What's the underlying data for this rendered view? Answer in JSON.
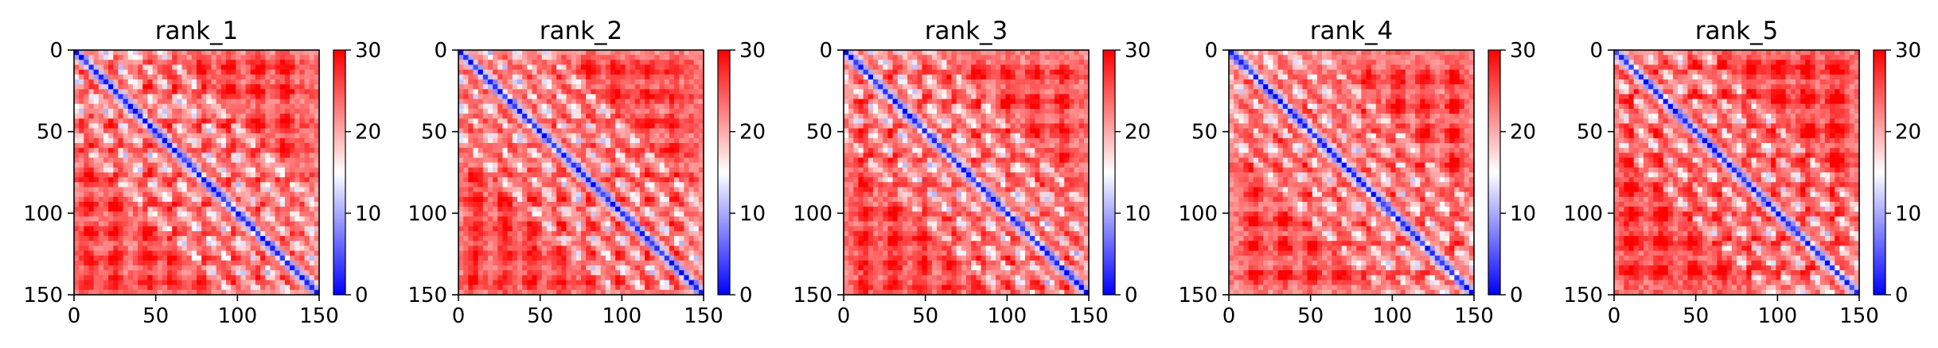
{
  "chart_data": [
    {
      "type": "heatmap",
      "title": "rank_1",
      "xlabel": "",
      "ylabel": "",
      "xlim": [
        0,
        150
      ],
      "ylim": [
        150,
        0
      ],
      "x_ticks": [
        "0",
        "50",
        "100",
        "150"
      ],
      "y_ticks": [
        "0",
        "50",
        "100",
        "150"
      ],
      "colorbar": {
        "range": [
          0,
          30
        ],
        "ticks": [
          "0",
          "10",
          "20",
          "30"
        ],
        "colormap": [
          "#0000ff",
          "#ffffff",
          "#ff0000"
        ]
      },
      "n_residues": 150,
      "diagonal_value": 2,
      "background_value": 24,
      "blue_offdiagonal_bands": [
        {
          "offset": 17,
          "value": 11
        },
        {
          "offset": 34,
          "value": 12
        },
        {
          "offset": 52,
          "value": 13
        }
      ],
      "red_block_rows": [
        12,
        25,
        45,
        60,
        78,
        95,
        112,
        127,
        142
      ],
      "red_block_cols": [
        8,
        25,
        45,
        60,
        78,
        95,
        112,
        130
      ]
    },
    {
      "type": "heatmap",
      "title": "rank_2",
      "xlabel": "",
      "ylabel": "",
      "xlim": [
        0,
        150
      ],
      "ylim": [
        150,
        0
      ],
      "x_ticks": [
        "0",
        "50",
        "100",
        "150"
      ],
      "y_ticks": [
        "0",
        "50",
        "100",
        "150"
      ],
      "colorbar": {
        "range": [
          0,
          30
        ],
        "ticks": [
          "0",
          "10",
          "20",
          "30"
        ],
        "colormap": [
          "#0000ff",
          "#ffffff",
          "#ff0000"
        ]
      },
      "n_residues": 150,
      "diagonal_value": 2,
      "background_value": 24,
      "blue_offdiagonal_bands": [
        {
          "offset": 17,
          "value": 11
        },
        {
          "offset": 34,
          "value": 12
        },
        {
          "offset": 52,
          "value": 13
        }
      ],
      "red_block_rows": [
        12,
        28,
        45,
        62,
        78,
        92,
        108,
        125,
        142
      ],
      "red_block_cols": [
        10,
        28,
        45,
        62,
        80,
        97,
        115,
        132
      ]
    },
    {
      "type": "heatmap",
      "title": "rank_3",
      "xlabel": "",
      "ylabel": "",
      "xlim": [
        0,
        150
      ],
      "ylim": [
        150,
        0
      ],
      "x_ticks": [
        "0",
        "50",
        "100",
        "150"
      ],
      "y_ticks": [
        "0",
        "50",
        "100",
        "150"
      ],
      "colorbar": {
        "range": [
          0,
          30
        ],
        "ticks": [
          "0",
          "10",
          "20",
          "30"
        ],
        "colormap": [
          "#0000ff",
          "#ffffff",
          "#ff0000"
        ]
      },
      "n_residues": 150,
      "diagonal_value": 2,
      "background_value": 24,
      "blue_offdiagonal_bands": [
        {
          "offset": 17,
          "value": 11
        },
        {
          "offset": 34,
          "value": 12
        },
        {
          "offset": 52,
          "value": 14
        }
      ],
      "red_block_rows": [
        15,
        32,
        50,
        65,
        82,
        100,
        115,
        130,
        145
      ],
      "red_block_cols": [
        12,
        30,
        48,
        65,
        82,
        100,
        118,
        135
      ]
    },
    {
      "type": "heatmap",
      "title": "rank_4",
      "xlabel": "",
      "ylabel": "",
      "xlim": [
        0,
        150
      ],
      "ylim": [
        150,
        0
      ],
      "x_ticks": [
        "0",
        "50",
        "100",
        "150"
      ],
      "y_ticks": [
        "0",
        "50",
        "100",
        "150"
      ],
      "colorbar": {
        "range": [
          0,
          30
        ],
        "ticks": [
          "0",
          "10",
          "20",
          "30"
        ],
        "colormap": [
          "#0000ff",
          "#ffffff",
          "#ff0000"
        ]
      },
      "n_residues": 150,
      "diagonal_value": 2,
      "background_value": 24,
      "blue_offdiagonal_bands": [
        {
          "offset": 17,
          "value": 12
        },
        {
          "offset": 34,
          "value": 13
        },
        {
          "offset": 52,
          "value": 14
        }
      ],
      "red_block_rows": [
        18,
        35,
        52,
        70,
        88,
        105,
        120,
        138
      ],
      "red_block_cols": [
        15,
        33,
        50,
        68,
        85,
        103,
        120,
        138
      ]
    },
    {
      "type": "heatmap",
      "title": "rank_5",
      "xlabel": "",
      "ylabel": "",
      "xlim": [
        0,
        150
      ],
      "ylim": [
        150,
        0
      ],
      "x_ticks": [
        "0",
        "50",
        "100",
        "150"
      ],
      "y_ticks": [
        "0",
        "50",
        "100",
        "150"
      ],
      "colorbar": {
        "range": [
          0,
          30
        ],
        "ticks": [
          "0",
          "10",
          "20",
          "30"
        ],
        "colormap": [
          "#0000ff",
          "#ffffff",
          "#ff0000"
        ]
      },
      "n_residues": 150,
      "diagonal_value": 2,
      "background_value": 25,
      "blue_offdiagonal_bands": [
        {
          "offset": 17,
          "value": 12
        },
        {
          "offset": 34,
          "value": 13
        },
        {
          "offset": 52,
          "value": 14
        }
      ],
      "red_block_rows": [
        12,
        30,
        50,
        68,
        85,
        102,
        118,
        135
      ],
      "red_block_cols": [
        10,
        28,
        48,
        66,
        84,
        100,
        118,
        136
      ]
    }
  ]
}
